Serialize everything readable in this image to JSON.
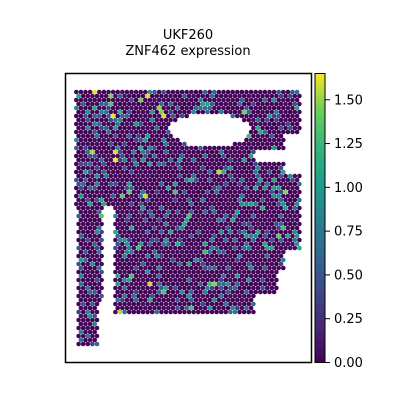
{
  "chart_data": {
    "type": "heatmap",
    "title": "UKF260",
    "subtitle": "ZNF462 expression",
    "xlabel": "",
    "ylabel": "",
    "grid": false,
    "colorbar": {
      "colormap": "viridis",
      "range": [
        0.0,
        1.65
      ],
      "ticks": [
        {
          "value": 0.0,
          "label": "0.00"
        },
        {
          "value": 0.25,
          "label": "0.25"
        },
        {
          "value": 0.5,
          "label": "0.50"
        },
        {
          "value": 0.75,
          "label": "0.75"
        },
        {
          "value": 1.0,
          "label": "1.00"
        },
        {
          "value": 1.25,
          "label": "1.25"
        },
        {
          "value": 1.5,
          "label": "1.50"
        }
      ]
    },
    "series": [
      {
        "values_summary": "Hexagonal spatial spots, mostly near 0.0 (dark purple), scattered spots at 0.4–1.0 (blue/teal) and a few near 1.4–1.6 (green/yellow)."
      }
    ]
  }
}
